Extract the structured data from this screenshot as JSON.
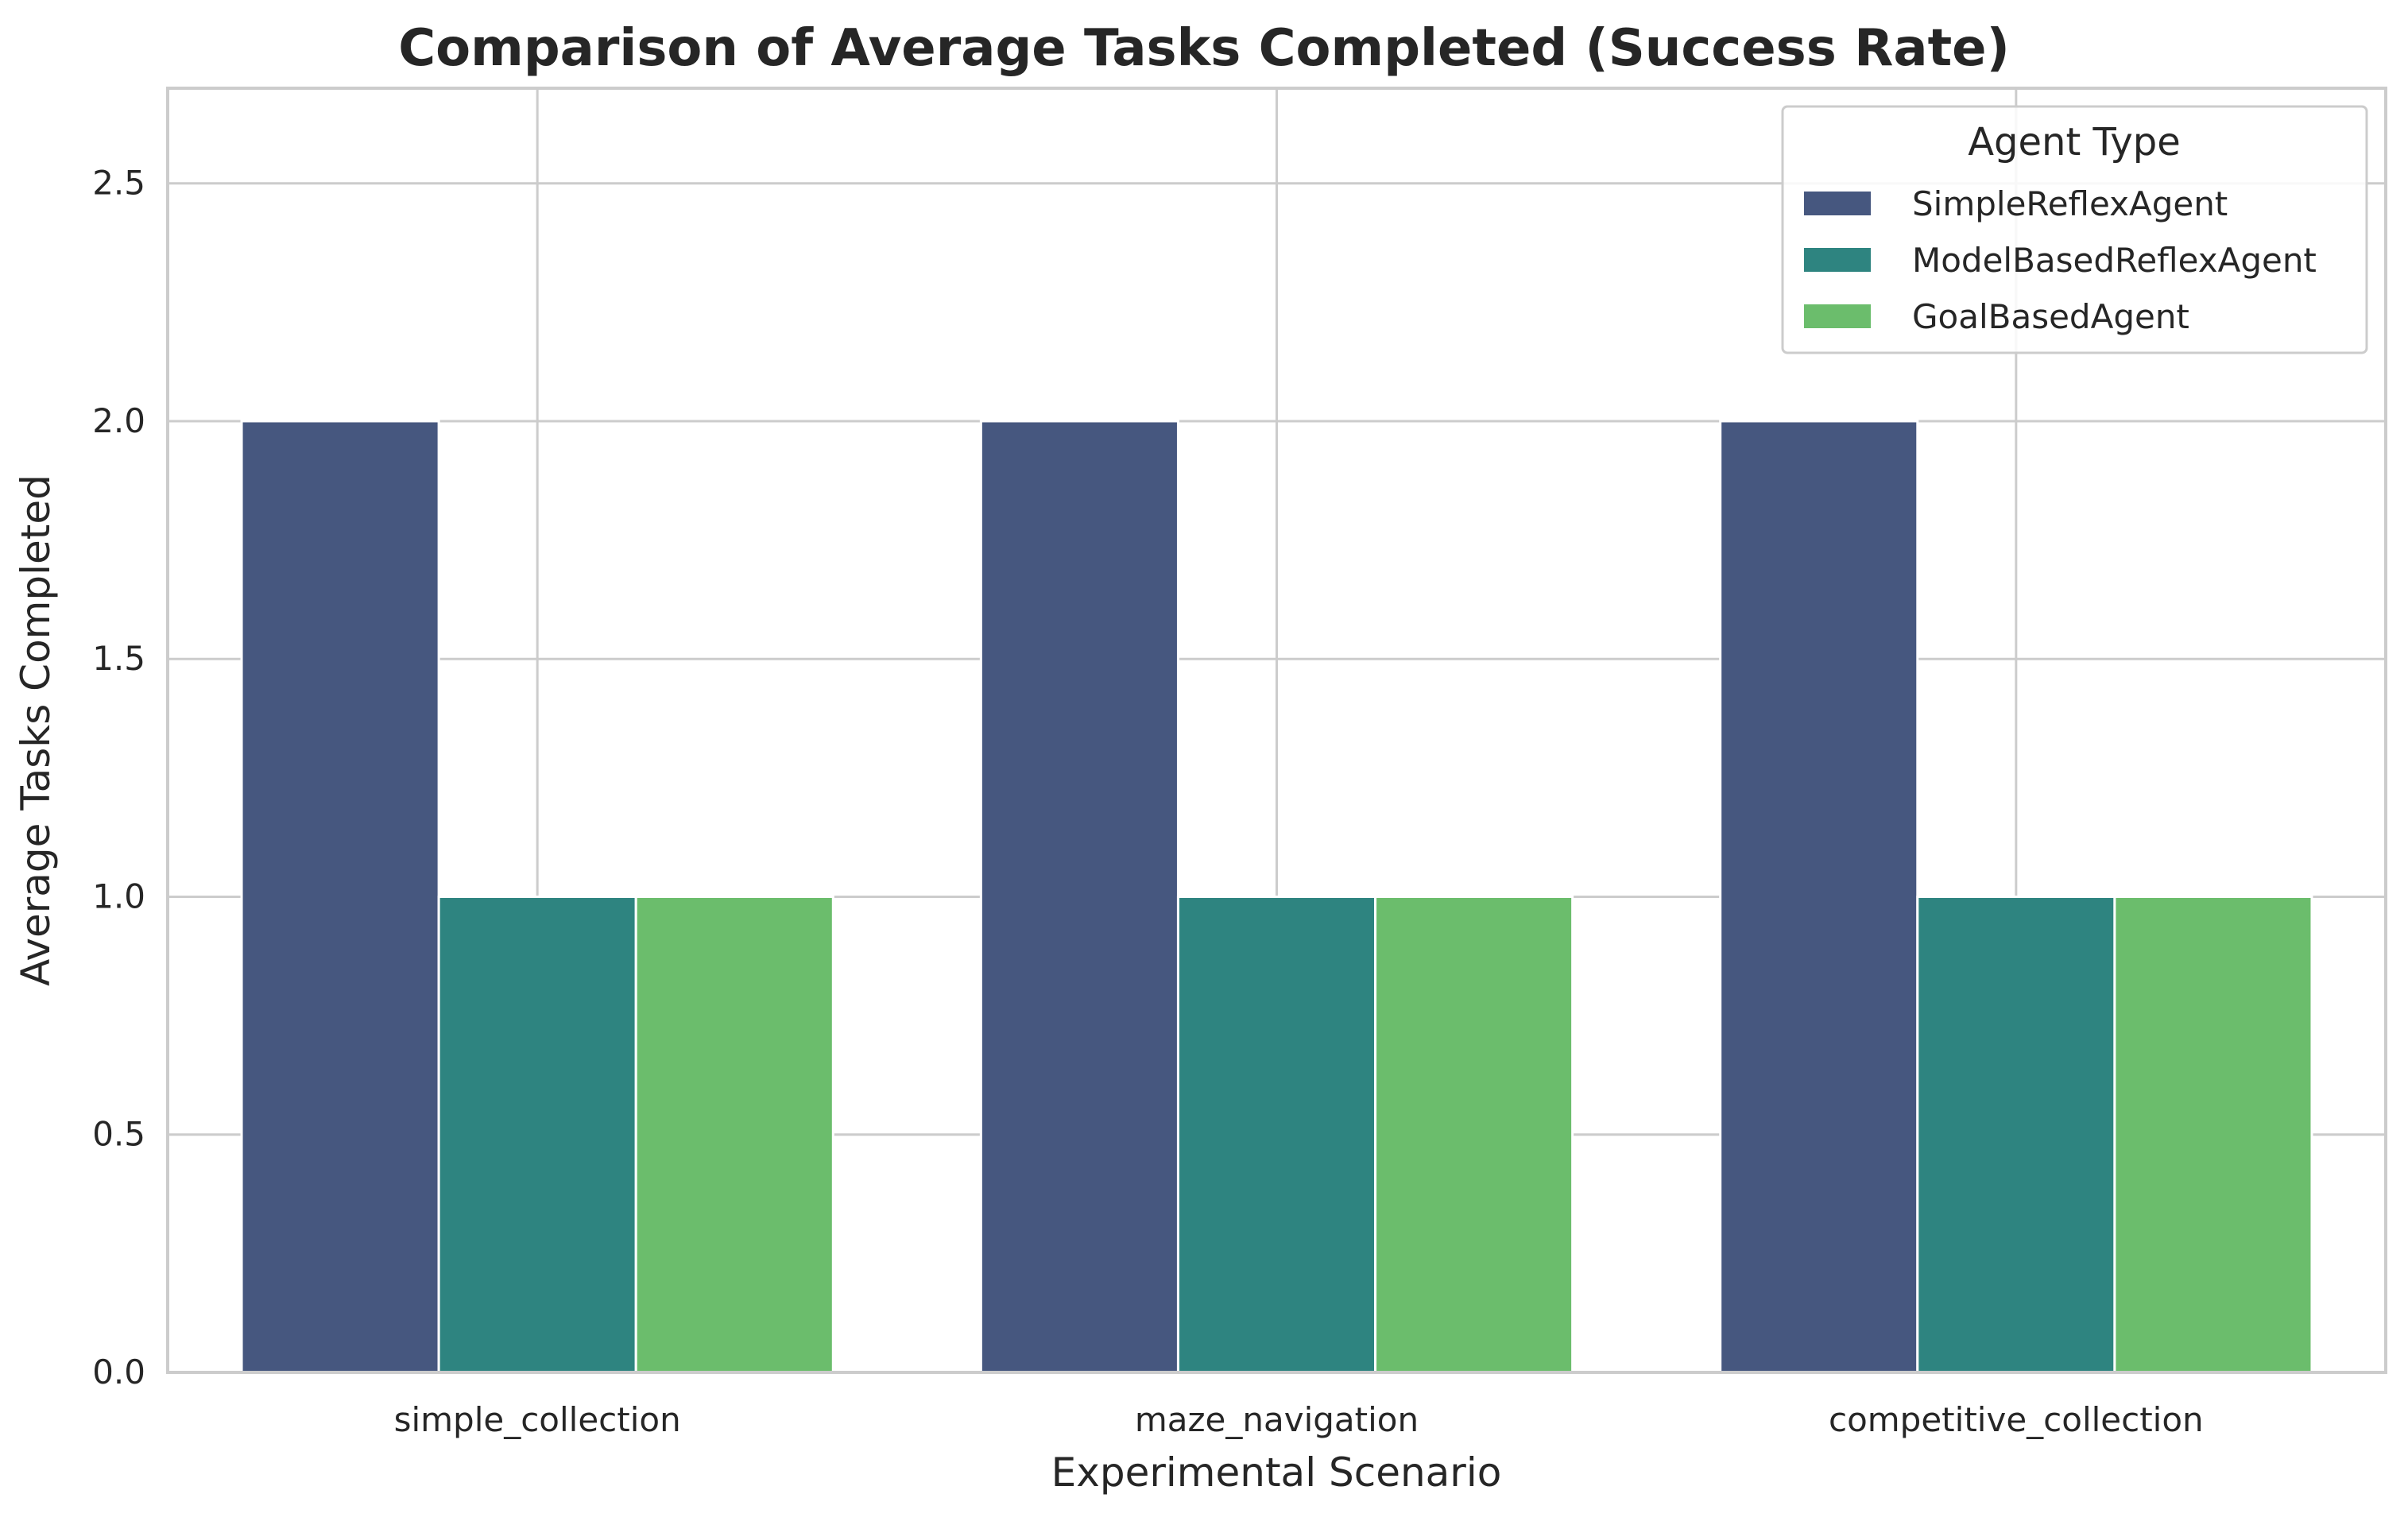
{
  "chart_data": {
    "type": "bar",
    "title": "Comparison of Average Tasks Completed (Success Rate)",
    "xlabel": "Experimental Scenario",
    "ylabel": "Average Tasks Completed",
    "categories": [
      "simple_collection",
      "maze_navigation",
      "competitive_collection"
    ],
    "series": [
      {
        "name": "SimpleReflexAgent",
        "values": [
          2.0,
          2.0,
          2.0
        ],
        "color": "#46577f"
      },
      {
        "name": "ModelBasedReflexAgent",
        "values": [
          1.0,
          1.0,
          1.0
        ],
        "color": "#2e8480"
      },
      {
        "name": "GoalBasedAgent",
        "values": [
          1.0,
          1.0,
          1.0
        ],
        "color": "#6bbd6c"
      }
    ],
    "ylim": [
      0,
      2.7
    ],
    "yticks": [
      "0.0",
      "0.5",
      "1.0",
      "1.5",
      "2.0",
      "2.5"
    ],
    "grid": true,
    "legend": {
      "title": "Agent Type",
      "placement": "top-right"
    }
  }
}
